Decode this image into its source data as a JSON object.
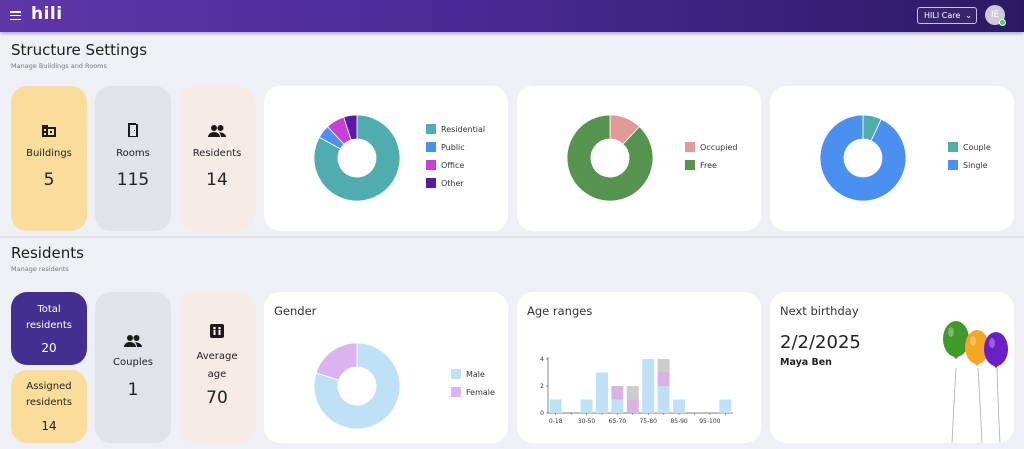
{
  "app": {
    "logo_text": "hili",
    "structure_selector": "HILI Care",
    "user_initials": "IE"
  },
  "structure": {
    "title": "Structure Settings",
    "subtitle": "Manage Buildings and Rooms",
    "stats": [
      {
        "label": "Buildings",
        "value": "5",
        "icon": "building-icon"
      },
      {
        "label": "Rooms",
        "value": "115",
        "icon": "door-icon"
      },
      {
        "label": "Residents",
        "value": "14",
        "icon": "people-icon"
      }
    ],
    "building_types": {
      "legend": [
        "Residential",
        "Public",
        "Office",
        "Other"
      ],
      "values": [
        83,
        5,
        7,
        5
      ],
      "colors": [
        "#50adad",
        "#4a90f0",
        "#c83fd6",
        "#5a1aa6"
      ]
    },
    "occupancy": {
      "legend": [
        "Occupied",
        "Free"
      ],
      "values": [
        12,
        88
      ],
      "colors": [
        "#e09a97",
        "#56934f"
      ]
    },
    "resident_types": {
      "legend": [
        "Couple",
        "Single"
      ],
      "values": [
        7,
        93
      ],
      "colors": [
        "#50adad",
        "#4a90f0"
      ]
    }
  },
  "residents": {
    "title": "Residents",
    "subtitle": "Manage residents",
    "total_label": "Total residents",
    "total_value": "20",
    "assigned_label": "Assigned residents",
    "assigned_value": "14",
    "couples_label": "Couples",
    "couples_value": "1",
    "avg_age_label": "Average age",
    "avg_age_value": "70",
    "gender": {
      "title": "Gender",
      "legend": [
        "Male",
        "Female"
      ],
      "values": [
        80,
        20
      ],
      "colors": [
        "#bfe1f5",
        "#dab3f0"
      ]
    },
    "birthday": {
      "title": "Next birthday",
      "date": "2/2/2025",
      "name": "Maya Ben"
    }
  },
  "chart_data": {
    "type": "bar",
    "title": "Age ranges",
    "categories": [
      "0-18",
      "",
      "30-50",
      "",
      "65-70",
      "",
      "75-80",
      "",
      "85-90",
      "",
      "95-100",
      ""
    ],
    "series": [
      {
        "values": [
          1,
          0,
          1,
          3,
          1,
          0,
          4,
          2,
          1,
          0,
          0,
          1
        ],
        "color": "#bfe1f5"
      },
      {
        "values": [
          0,
          0,
          0,
          0,
          1,
          1,
          0,
          1,
          0,
          0,
          0,
          0
        ],
        "color": "#d9b3e6"
      },
      {
        "values": [
          0,
          0,
          0,
          0,
          0,
          1,
          0,
          1,
          0,
          0,
          0,
          0
        ],
        "color": "#cccccc"
      }
    ],
    "y_ticks": [
      "0",
      "2",
      "4"
    ],
    "ylim": [
      0,
      4
    ]
  }
}
